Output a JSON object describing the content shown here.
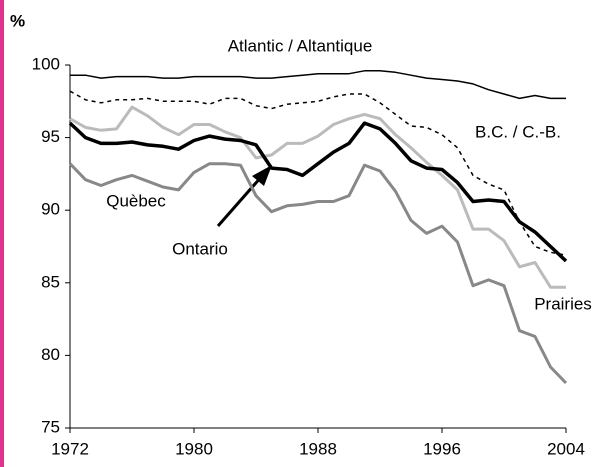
{
  "chart_data": {
    "type": "line",
    "y_unit_label": "%",
    "x": [
      1972,
      1973,
      1974,
      1975,
      1976,
      1977,
      1978,
      1979,
      1980,
      1981,
      1982,
      1983,
      1984,
      1985,
      1986,
      1987,
      1988,
      1989,
      1990,
      1991,
      1992,
      1993,
      1994,
      1995,
      1996,
      1997,
      1998,
      1999,
      2000,
      2001,
      2002,
      2003,
      2004
    ],
    "xlim": [
      1972,
      2004
    ],
    "xticks": [
      1972,
      1980,
      1988,
      1996,
      2004
    ],
    "ylim": [
      75,
      100
    ],
    "yticks": [
      75,
      80,
      85,
      90,
      95,
      100
    ],
    "series": [
      {
        "name": "Atlantic / Altantique",
        "color": "#000000",
        "dashed": false,
        "values": [
          99.3,
          99.3,
          99.1,
          99.2,
          99.2,
          99.2,
          99.1,
          99.1,
          99.2,
          99.2,
          99.2,
          99.2,
          99.1,
          99.1,
          99.2,
          99.3,
          99.4,
          99.4,
          99.4,
          99.6,
          99.6,
          99.5,
          99.3,
          99.1,
          99.0,
          98.9,
          98.7,
          98.3,
          98.0,
          97.7,
          97.9,
          97.7,
          97.7
        ]
      },
      {
        "name": "B.C. / C.-B.",
        "color": "#000000",
        "dashed": true,
        "values": [
          98.2,
          97.6,
          97.4,
          97.6,
          97.6,
          97.7,
          97.5,
          97.5,
          97.5,
          97.3,
          97.7,
          97.7,
          97.2,
          97.0,
          97.3,
          97.4,
          97.5,
          97.8,
          98.0,
          98.0,
          97.4,
          96.6,
          95.8,
          95.7,
          95.2,
          94.3,
          92.4,
          91.8,
          91.4,
          89.2,
          87.5,
          87.1,
          86.9
        ]
      },
      {
        "name": "Ontario",
        "color": "#000000",
        "dashed": false,
        "values": [
          96.0,
          95.0,
          94.6,
          94.6,
          94.7,
          94.5,
          94.4,
          94.2,
          94.8,
          95.1,
          94.9,
          94.8,
          94.5,
          92.9,
          92.8,
          92.4,
          93.2,
          94.0,
          94.6,
          96.0,
          95.6,
          94.6,
          93.4,
          92.9,
          92.8,
          91.9,
          90.6,
          90.7,
          90.6,
          89.2,
          88.5,
          87.5,
          86.5
        ]
      },
      {
        "name": "Prairies",
        "color": "#bbbbbb",
        "dashed": false,
        "values": [
          96.3,
          95.7,
          95.5,
          95.6,
          97.1,
          96.5,
          95.7,
          95.2,
          95.9,
          95.9,
          95.4,
          95.0,
          93.6,
          93.8,
          94.6,
          94.6,
          95.1,
          95.9,
          96.3,
          96.6,
          96.3,
          95.2,
          94.3,
          93.3,
          92.4,
          91.4,
          88.7,
          88.7,
          87.9,
          86.1,
          86.4,
          84.7,
          84.7
        ]
      },
      {
        "name": "Quèbec",
        "color": "#888888",
        "dashed": false,
        "values": [
          93.2,
          92.1,
          91.7,
          92.1,
          92.4,
          92.0,
          91.6,
          91.4,
          92.6,
          93.2,
          93.2,
          93.1,
          91.0,
          89.9,
          90.3,
          90.4,
          90.6,
          90.6,
          91.0,
          93.1,
          92.7,
          91.3,
          89.3,
          88.4,
          88.9,
          87.8,
          84.8,
          85.2,
          84.8,
          81.7,
          81.3,
          79.2,
          78.1
        ]
      }
    ]
  }
}
